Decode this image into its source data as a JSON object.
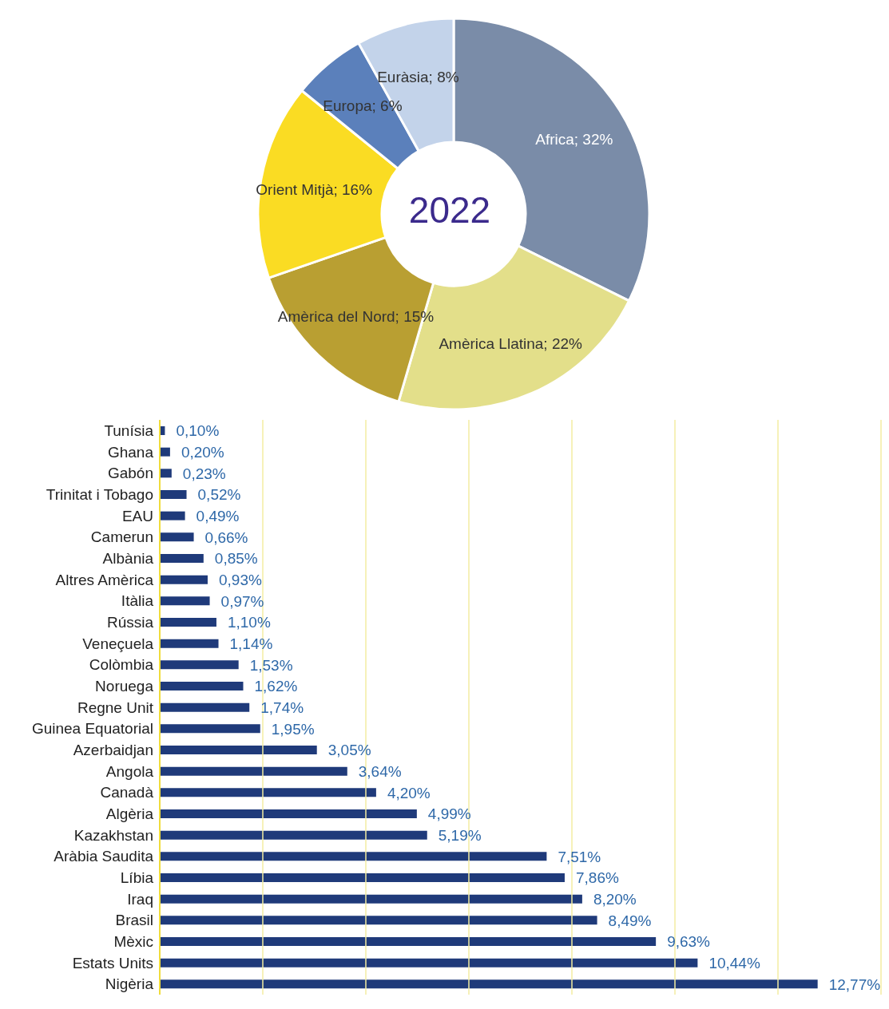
{
  "chart_data": [
    {
      "type": "donut",
      "title": "2022",
      "categories": [
        "Africa",
        "Amèrica Llatina",
        "Amèrica del Nord",
        "Orient Mitjà",
        "Europa",
        "Euràsia"
      ],
      "values": [
        32,
        22,
        15,
        16,
        6,
        8
      ],
      "colors": [
        "#7a8ca8",
        "#e3df8a",
        "#b99f32",
        "#fadc23",
        "#5b80bb",
        "#c3d3ea"
      ],
      "value_labels": [
        "32%",
        "22%",
        "15%",
        "16%",
        "6%",
        "8%"
      ]
    },
    {
      "type": "bar",
      "orientation": "horizontal",
      "categories": [
        "Tunísia",
        "Ghana",
        "Gabón",
        "Trinitat i Tobago",
        "EAU",
        "Camerun",
        "Albània",
        "Altres Amèrica",
        "Itàlia",
        "Rússia",
        "Veneçuela",
        "Colòmbia",
        "Noruega",
        "Regne Unit",
        "Guinea Equatorial",
        "Azerbaidjan",
        "Angola",
        "Canadà",
        "Algèria",
        "Kazakhstan",
        "Aràbia Saudita",
        "Líbia",
        "Iraq",
        "Brasil",
        "Mèxic",
        "Estats Units",
        "Nigèria"
      ],
      "values": [
        0.1,
        0.2,
        0.23,
        0.52,
        0.49,
        0.66,
        0.85,
        0.93,
        0.97,
        1.1,
        1.14,
        1.53,
        1.62,
        1.74,
        1.95,
        3.05,
        3.64,
        4.2,
        4.99,
        5.19,
        7.51,
        7.86,
        8.2,
        8.49,
        9.63,
        10.44,
        12.77
      ],
      "color": "#1f3a7a",
      "value_labels": [
        "0,10%",
        "0,20%",
        "0,23%",
        "0,52%",
        "0,49%",
        "0,66%",
        "0,85%",
        "0,93%",
        "0,97%",
        "1,10%",
        "1,14%",
        "1,53%",
        "1,62%",
        "1,74%",
        "1,95%",
        "3,05%",
        "3,64%",
        "4,20%",
        "4,99%",
        "5,19%",
        "7,51%",
        "7,86%",
        "8,20%",
        "8,49%",
        "9,63%",
        "10,44%",
        "12,77%"
      ],
      "xlim": [
        0,
        14
      ],
      "xticks": [
        {
          "value": 0,
          "label": null
        },
        {
          "value": 2,
          "label": null
        },
        {
          "value": 4,
          "label": null
        },
        {
          "value": 6,
          "label": null
        },
        {
          "value": 8,
          "label": null
        },
        {
          "value": 10,
          "label": null
        },
        {
          "value": 12,
          "label": null
        },
        {
          "value": 14,
          "label": null
        }
      ],
      "grid": "x",
      "tick_labels": "y"
    }
  ]
}
